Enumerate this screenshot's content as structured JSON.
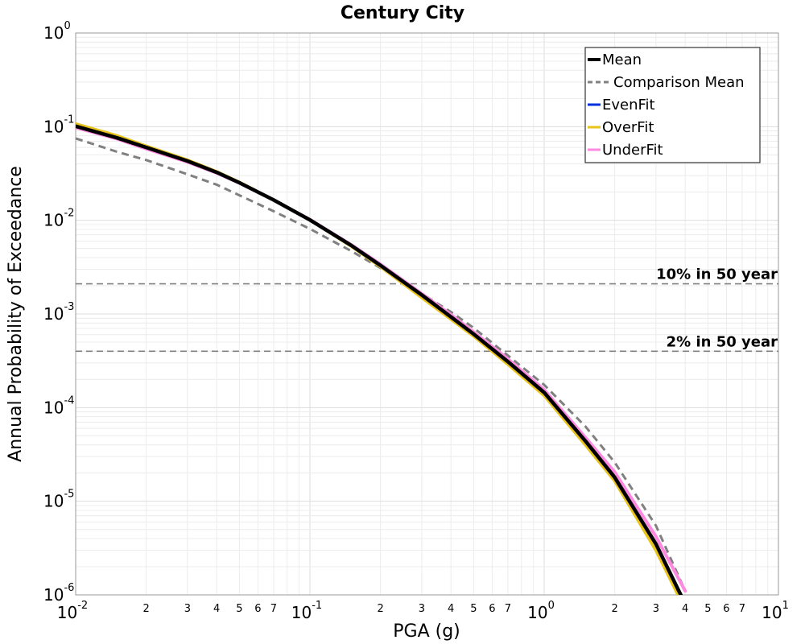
{
  "chart_data": {
    "type": "line",
    "title": "Century City",
    "xlabel": "PGA (g)",
    "ylabel": "Annual Probability of Exceedance",
    "x_scale": "log",
    "y_scale": "log",
    "xlim": [
      0.01,
      10
    ],
    "ylim": [
      1e-06,
      1
    ],
    "grid": true,
    "legend_position": "top-right",
    "x_major_ticks": [
      {
        "value": 0.01,
        "base": "10",
        "exp": "-2"
      },
      {
        "value": 0.1,
        "base": "10",
        "exp": "-1"
      },
      {
        "value": 1,
        "base": "10",
        "exp": "0"
      },
      {
        "value": 10,
        "base": "10",
        "exp": "1"
      }
    ],
    "y_major_ticks": [
      {
        "value": 1,
        "base": "10",
        "exp": "0"
      },
      {
        "value": 0.1,
        "base": "10",
        "exp": "-1"
      },
      {
        "value": 0.01,
        "base": "10",
        "exp": "-2"
      },
      {
        "value": 0.001,
        "base": "10",
        "exp": "-3"
      },
      {
        "value": 0.0001,
        "base": "10",
        "exp": "-4"
      },
      {
        "value": 1e-05,
        "base": "10",
        "exp": "-5"
      },
      {
        "value": 1e-06,
        "base": "10",
        "exp": "-6"
      }
    ],
    "x_minor_labels": [
      {
        "value": 0.02,
        "label": "2"
      },
      {
        "value": 0.03,
        "label": "3"
      },
      {
        "value": 0.04,
        "label": "4"
      },
      {
        "value": 0.05,
        "label": "5"
      },
      {
        "value": 0.06,
        "label": "6"
      },
      {
        "value": 0.07,
        "label": "7"
      },
      {
        "value": 0.2,
        "label": "2"
      },
      {
        "value": 0.3,
        "label": "3"
      },
      {
        "value": 0.4,
        "label": "4"
      },
      {
        "value": 0.5,
        "label": "5"
      },
      {
        "value": 0.6,
        "label": "6"
      },
      {
        "value": 0.7,
        "label": "7"
      },
      {
        "value": 2,
        "label": "2"
      },
      {
        "value": 3,
        "label": "3"
      },
      {
        "value": 4,
        "label": "4"
      },
      {
        "value": 5,
        "label": "5"
      },
      {
        "value": 6,
        "label": "6"
      },
      {
        "value": 7,
        "label": "7"
      }
    ],
    "reference_lines": [
      {
        "label": "10% in 50 year",
        "y": 0.0021,
        "color": "#808080"
      },
      {
        "label": "2% in 50 year",
        "y": 0.0004,
        "color": "#808080"
      }
    ],
    "series": [
      {
        "name": "Comparison Mean",
        "color": "#808080",
        "style": "dashed",
        "points": [
          [
            0.01,
            0.075
          ],
          [
            0.015,
            0.054
          ],
          [
            0.02,
            0.044
          ],
          [
            0.03,
            0.031
          ],
          [
            0.04,
            0.024
          ],
          [
            0.05,
            0.0185
          ],
          [
            0.07,
            0.0125
          ],
          [
            0.1,
            0.0081
          ],
          [
            0.15,
            0.0047
          ],
          [
            0.2,
            0.0031
          ],
          [
            0.3,
            0.00165
          ],
          [
            0.4,
            0.00105
          ],
          [
            0.5,
            0.00071
          ],
          [
            0.7,
            0.00036
          ],
          [
            1,
            0.000175
          ],
          [
            1.5,
            6.3e-05
          ],
          [
            2,
            2.6e-05
          ],
          [
            3,
            5.5e-06
          ],
          [
            4,
            1.1e-06
          ]
        ]
      },
      {
        "name": "OverFit",
        "color": "#e8c31a",
        "style": "solid",
        "points": [
          [
            0.01,
            0.107
          ],
          [
            0.015,
            0.08
          ],
          [
            0.02,
            0.062
          ],
          [
            0.03,
            0.044
          ],
          [
            0.04,
            0.033
          ],
          [
            0.05,
            0.0255
          ],
          [
            0.07,
            0.0165
          ],
          [
            0.1,
            0.0101
          ],
          [
            0.15,
            0.0053
          ],
          [
            0.2,
            0.0032
          ],
          [
            0.3,
            0.0015
          ],
          [
            0.4,
            0.00088
          ],
          [
            0.5,
            0.00058
          ],
          [
            0.7,
            0.00029
          ],
          [
            1,
            0.000135
          ],
          [
            1.5,
            4e-05
          ],
          [
            2,
            1.65e-05
          ],
          [
            3,
            3e-06
          ],
          [
            4,
            7e-07
          ]
        ]
      },
      {
        "name": "UnderFit",
        "color": "#ff88e0",
        "style": "solid",
        "points": [
          [
            0.01,
            0.098
          ],
          [
            0.015,
            0.074
          ],
          [
            0.02,
            0.058
          ],
          [
            0.03,
            0.042
          ],
          [
            0.04,
            0.032
          ],
          [
            0.05,
            0.025
          ],
          [
            0.07,
            0.0165
          ],
          [
            0.1,
            0.0102
          ],
          [
            0.15,
            0.0055
          ],
          [
            0.2,
            0.0034
          ],
          [
            0.3,
            0.00165
          ],
          [
            0.4,
            0.00098
          ],
          [
            0.5,
            0.00064
          ],
          [
            0.7,
            0.00033
          ],
          [
            1,
            0.000155
          ],
          [
            1.5,
            4.8e-05
          ],
          [
            2,
            2.05e-05
          ],
          [
            3,
            4.2e-06
          ],
          [
            4,
            1.1e-06
          ]
        ]
      },
      {
        "name": "EvenFit",
        "color": "#0033dd",
        "style": "solid",
        "points": [
          [
            0.01,
            0.101
          ],
          [
            0.015,
            0.076
          ],
          [
            0.02,
            0.06
          ],
          [
            0.03,
            0.043
          ],
          [
            0.04,
            0.0325
          ],
          [
            0.05,
            0.0252
          ],
          [
            0.07,
            0.0165
          ],
          [
            0.1,
            0.0101
          ],
          [
            0.15,
            0.0054
          ],
          [
            0.2,
            0.0033
          ],
          [
            0.3,
            0.0016
          ],
          [
            0.4,
            0.00093
          ],
          [
            0.5,
            0.00061
          ],
          [
            0.7,
            0.00031
          ],
          [
            1,
            0.000145
          ],
          [
            1.5,
            4.4e-05
          ],
          [
            2,
            1.8e-05
          ],
          [
            3,
            3.5e-06
          ],
          [
            4,
            8e-07
          ]
        ]
      },
      {
        "name": "Mean",
        "color": "#000000",
        "style": "solid",
        "points": [
          [
            0.01,
            0.101
          ],
          [
            0.015,
            0.076
          ],
          [
            0.02,
            0.06
          ],
          [
            0.03,
            0.043
          ],
          [
            0.04,
            0.0325
          ],
          [
            0.05,
            0.0252
          ],
          [
            0.07,
            0.0165
          ],
          [
            0.1,
            0.0101
          ],
          [
            0.15,
            0.0054
          ],
          [
            0.2,
            0.0033
          ],
          [
            0.3,
            0.0016
          ],
          [
            0.4,
            0.00093
          ],
          [
            0.5,
            0.00061
          ],
          [
            0.7,
            0.00031
          ],
          [
            1,
            0.000145
          ],
          [
            1.5,
            4.4e-05
          ],
          [
            2,
            1.8e-05
          ],
          [
            3,
            3.5e-06
          ],
          [
            4,
            8e-07
          ]
        ]
      }
    ],
    "legend": [
      {
        "name": "Mean",
        "color": "#000000",
        "style": "solid"
      },
      {
        "name": "Comparison Mean",
        "color": "#808080",
        "style": "dashed"
      },
      {
        "name": "EvenFit",
        "color": "#0033dd",
        "style": "solid"
      },
      {
        "name": "OverFit",
        "color": "#e8c31a",
        "style": "solid"
      },
      {
        "name": "UnderFit",
        "color": "#ff88e0",
        "style": "solid"
      }
    ]
  }
}
